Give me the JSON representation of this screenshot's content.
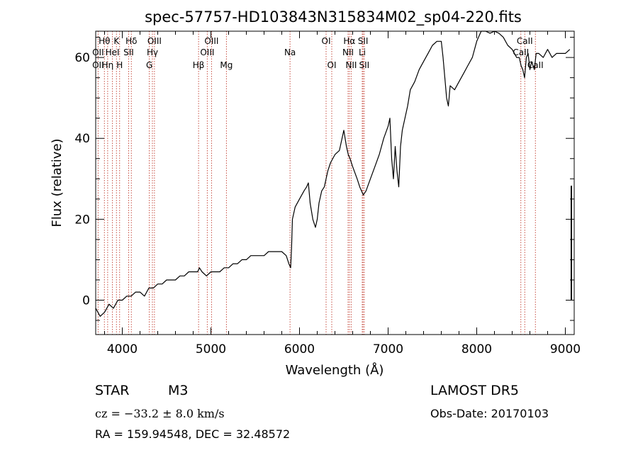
{
  "chart_data": {
    "type": "line",
    "title": "spec-57757-HD103843N315834M02_sp04-220.fits",
    "xlabel": "Wavelength (Å)",
    "ylabel": "Flux (relative)",
    "xlim": [
      3700,
      9100
    ],
    "ylim": [
      -8.5,
      66.5
    ],
    "x_ticks": [
      4000,
      5000,
      6000,
      7000,
      8000,
      9000
    ],
    "y_ticks": [
      0,
      20,
      40,
      60
    ],
    "grid": false,
    "line_color": "#000000",
    "marker_line_color": "#c0392b",
    "spectral_lines": [
      {
        "label": "Hθ",
        "wavelength": 3798,
        "row": 0
      },
      {
        "label": "K",
        "wavelength": 3934,
        "row": 0
      },
      {
        "label": "Hδ",
        "wavelength": 4102,
        "row": 0
      },
      {
        "label": "OIII",
        "wavelength": 4363,
        "row": 0
      },
      {
        "label": "OIII",
        "wavelength": 5007,
        "row": 0
      },
      {
        "label": "OI",
        "wavelength": 6300,
        "row": 0
      },
      {
        "label": "Hα",
        "wavelength": 6563,
        "row": 0
      },
      {
        "label": "SII",
        "wavelength": 6717,
        "row": 0
      },
      {
        "label": "CaII",
        "wavelength": 8542,
        "row": 0
      },
      {
        "label": "OII",
        "wavelength": 3727,
        "row": 1
      },
      {
        "label": "HeI",
        "wavelength": 3889,
        "row": 1
      },
      {
        "label": "SII",
        "wavelength": 4072,
        "row": 1
      },
      {
        "label": "Hγ",
        "wavelength": 4340,
        "row": 1
      },
      {
        "label": "OIII",
        "wavelength": 4959,
        "row": 1
      },
      {
        "label": "Na",
        "wavelength": 5893,
        "row": 1
      },
      {
        "label": "NII",
        "wavelength": 6548,
        "row": 1
      },
      {
        "label": "Li",
        "wavelength": 6708,
        "row": 1
      },
      {
        "label": "CaII",
        "wavelength": 8498,
        "row": 1
      },
      {
        "label": "OII",
        "wavelength": 3727,
        "row": 2
      },
      {
        "label": "Hη",
        "wavelength": 3835,
        "row": 2
      },
      {
        "label": "H",
        "wavelength": 3970,
        "row": 2
      },
      {
        "label": "G",
        "wavelength": 4305,
        "row": 2
      },
      {
        "label": "Hβ",
        "wavelength": 4861,
        "row": 2
      },
      {
        "label": "Mg",
        "wavelength": 5175,
        "row": 2
      },
      {
        "label": "OI",
        "wavelength": 6364,
        "row": 2
      },
      {
        "label": "NII",
        "wavelength": 6583,
        "row": 2
      },
      {
        "label": "SII",
        "wavelength": 6731,
        "row": 2
      },
      {
        "label": "CaII",
        "wavelength": 8662,
        "row": 2
      }
    ],
    "series": [
      {
        "x": [
          3700,
          3750,
          3800,
          3850,
          3900,
          3950,
          4000,
          4050,
          4100,
          4150,
          4200,
          4250,
          4300,
          4350,
          4400,
          4450,
          4500,
          4550,
          4600,
          4650,
          4700,
          4750,
          4800,
          4850,
          4870,
          4900,
          4950,
          5000,
          5050,
          5100,
          5150,
          5200,
          5250,
          5300,
          5350,
          5400,
          5450,
          5500,
          5550,
          5600,
          5650,
          5700,
          5750,
          5800,
          5850,
          5880,
          5900,
          5910,
          5920,
          5950,
          6000,
          6050,
          6080,
          6100,
          6120,
          6150,
          6180,
          6200,
          6220,
          6250,
          6280,
          6300,
          6320,
          6350,
          6400,
          6450,
          6500,
          6530,
          6550,
          6570,
          6600,
          6650,
          6680,
          6700,
          6720,
          6750,
          6800,
          6850,
          6900,
          6950,
          7000,
          7020,
          7040,
          7060,
          7080,
          7100,
          7120,
          7140,
          7160,
          7180,
          7200,
          7220,
          7250,
          7300,
          7350,
          7400,
          7450,
          7500,
          7550,
          7600,
          7620,
          7640,
          7660,
          7680,
          7700,
          7750,
          7800,
          7850,
          7900,
          7950,
          8000,
          8050,
          8100,
          8150,
          8200,
          8250,
          8300,
          8350,
          8400,
          8450,
          8480,
          8500,
          8520,
          8540,
          8560,
          8580,
          8600,
          8620,
          8650,
          8670,
          8700,
          8750,
          8800,
          8850,
          8900,
          8950,
          9000,
          9050
        ],
        "y": [
          -2,
          -4,
          -3,
          -1,
          -2,
          0,
          0,
          1,
          1,
          2,
          2,
          1,
          3,
          3,
          4,
          4,
          5,
          5,
          5,
          6,
          6,
          7,
          7,
          7,
          8,
          7,
          6,
          7,
          7,
          7,
          8,
          8,
          9,
          9,
          10,
          10,
          11,
          11,
          11,
          11,
          12,
          12,
          12,
          12,
          11,
          9,
          8,
          13,
          20,
          23,
          25,
          27,
          28,
          29,
          24,
          20,
          18,
          20,
          24,
          27,
          28,
          30,
          32,
          34,
          36,
          37,
          42,
          38,
          36,
          35,
          33,
          30,
          28,
          27,
          26,
          27,
          30,
          33,
          36,
          40,
          43,
          45,
          35,
          30,
          38,
          32,
          28,
          38,
          42,
          44,
          46,
          48,
          52,
          54,
          57,
          59,
          61,
          63,
          64,
          64,
          60,
          55,
          50,
          48,
          53,
          52,
          54,
          56,
          58,
          60,
          64,
          67,
          67,
          66,
          67,
          66,
          65,
          63,
          62,
          60,
          60,
          58,
          57,
          55,
          60,
          61,
          57,
          59,
          57,
          61,
          61,
          60,
          62,
          60,
          61,
          61,
          61,
          62
        ]
      }
    ]
  },
  "info": {
    "object_class": "STAR",
    "subclass": "M3",
    "survey": "LAMOST DR5",
    "redshift": "cz = −33.2 ± 8.0 km/s",
    "obs_date": "Obs-Date: 20170103",
    "coords": "RA = 159.94548, DEC =  32.48572"
  }
}
